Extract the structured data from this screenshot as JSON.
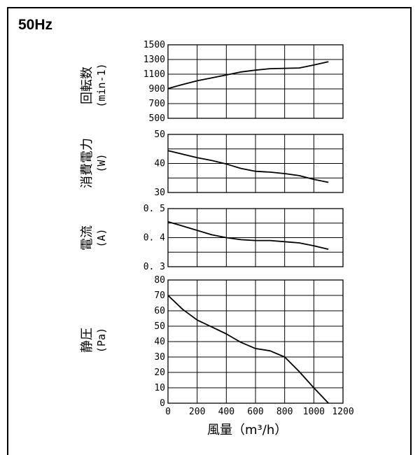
{
  "header": {
    "frequency_label": "50Hz"
  },
  "x_axis": {
    "label_text": "風量（",
    "label_unit": "m³/h",
    "label_close": "）",
    "ticks": [
      "0",
      "200",
      "400",
      "600",
      "800",
      "1000",
      "1200"
    ]
  },
  "chart_data": [
    {
      "type": "line",
      "ylabel": "回転数",
      "yunit": "(min-1)",
      "ylim": [
        500,
        1500
      ],
      "yticks": [
        "1500",
        "1300",
        "1100",
        "900",
        "700",
        "500"
      ],
      "xlim": [
        0,
        1200
      ],
      "grid": true,
      "series": [
        {
          "x": [
            0,
            100,
            200,
            300,
            400,
            500,
            600,
            700,
            800,
            900,
            1000,
            1100
          ],
          "y": [
            905,
            960,
            1010,
            1050,
            1090,
            1130,
            1155,
            1175,
            1180,
            1185,
            1225,
            1270
          ]
        }
      ]
    },
    {
      "type": "line",
      "ylabel": "消費電力",
      "yunit": "(W)",
      "ylim": [
        30,
        50
      ],
      "yticks": [
        "50",
        "40",
        "30"
      ],
      "xlim": [
        0,
        1200
      ],
      "grid": true,
      "series": [
        {
          "x": [
            0,
            100,
            200,
            300,
            400,
            500,
            600,
            700,
            800,
            900,
            1000,
            1100
          ],
          "y": [
            44.4,
            43.2,
            42.0,
            41.0,
            39.8,
            38.3,
            37.3,
            37.0,
            36.5,
            35.8,
            34.5,
            33.5
          ]
        }
      ]
    },
    {
      "type": "line",
      "ylabel": "電流",
      "yunit": "(A)",
      "ylim": [
        0.3,
        0.5
      ],
      "yticks": [
        "0. 5",
        "0. 4",
        "0. 3"
      ],
      "xlim": [
        0,
        1200
      ],
      "grid": true,
      "series": [
        {
          "x": [
            0,
            100,
            200,
            300,
            400,
            500,
            600,
            700,
            800,
            900,
            1000,
            1100
          ],
          "y": [
            0.455,
            0.44,
            0.425,
            0.41,
            0.4,
            0.393,
            0.39,
            0.39,
            0.386,
            0.382,
            0.372,
            0.36
          ]
        }
      ]
    },
    {
      "type": "line",
      "ylabel": "静圧",
      "yunit": "(Pa)",
      "ylim": [
        0,
        80
      ],
      "yticks": [
        "80",
        "70",
        "60",
        "50",
        "40",
        "30",
        "20",
        "10",
        "0"
      ],
      "xlim": [
        0,
        1200
      ],
      "xticks": [
        "0",
        "200",
        "400",
        "600",
        "800",
        "1000",
        "1200"
      ],
      "grid": true,
      "series": [
        {
          "x": [
            0,
            100,
            200,
            300,
            400,
            500,
            600,
            700,
            800,
            900,
            1000,
            1100
          ],
          "y": [
            70,
            61,
            54,
            49.5,
            45,
            39.5,
            35.5,
            34,
            30,
            20.5,
            10,
            0
          ]
        }
      ]
    }
  ]
}
